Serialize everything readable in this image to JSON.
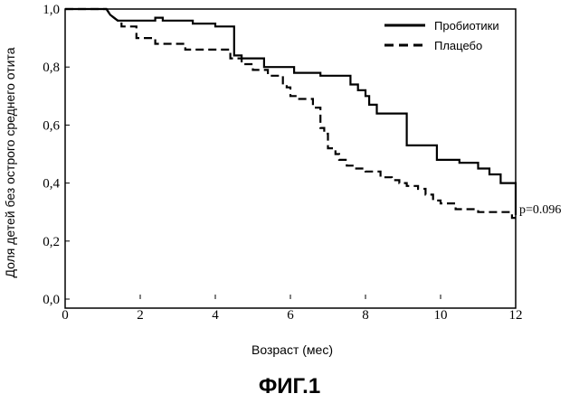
{
  "figure": {
    "caption": "ФИГ.1"
  },
  "chart_data": {
    "type": "line",
    "step": true,
    "xlabel": "Возраст (мес)",
    "ylabel": "Доля детей без острого среднего отита",
    "xlim": [
      0,
      12
    ],
    "ylim": [
      0,
      1
    ],
    "x_ticks": [
      0,
      2,
      4,
      6,
      8,
      10,
      12
    ],
    "x_tick_labels": [
      "0",
      "2",
      "4",
      "6",
      "8",
      "10",
      "12"
    ],
    "y_ticks": [
      0,
      0.2,
      0.4,
      0.6,
      0.8,
      1.0
    ],
    "y_tick_labels": [
      "0,0",
      "0,2",
      "0,4",
      "0,6",
      "0,8",
      "1,0"
    ],
    "grid": false,
    "legend_position": "top-right",
    "annotation": {
      "text": "p=0.096",
      "x": 12,
      "y": 0.3
    },
    "series": [
      {
        "name": "Пробиотики",
        "line_style": "solid",
        "color": "#000000",
        "points": [
          [
            0,
            1.0
          ],
          [
            1.1,
            1.0
          ],
          [
            1.2,
            0.98
          ],
          [
            1.3,
            0.97
          ],
          [
            1.4,
            0.96
          ],
          [
            1.5,
            0.96
          ],
          [
            2.4,
            0.96
          ],
          [
            2.4,
            0.97
          ],
          [
            2.6,
            0.97
          ],
          [
            2.6,
            0.96
          ],
          [
            3.4,
            0.96
          ],
          [
            3.4,
            0.95
          ],
          [
            4.0,
            0.95
          ],
          [
            4.0,
            0.94
          ],
          [
            4.5,
            0.94
          ],
          [
            4.5,
            0.84
          ],
          [
            4.7,
            0.84
          ],
          [
            4.7,
            0.83
          ],
          [
            5.3,
            0.83
          ],
          [
            5.3,
            0.8
          ],
          [
            6.1,
            0.8
          ],
          [
            6.1,
            0.78
          ],
          [
            6.8,
            0.78
          ],
          [
            6.8,
            0.77
          ],
          [
            7.6,
            0.77
          ],
          [
            7.6,
            0.74
          ],
          [
            7.8,
            0.74
          ],
          [
            7.8,
            0.72
          ],
          [
            8.0,
            0.72
          ],
          [
            8.0,
            0.7
          ],
          [
            8.1,
            0.7
          ],
          [
            8.1,
            0.67
          ],
          [
            8.3,
            0.67
          ],
          [
            8.3,
            0.64
          ],
          [
            9.1,
            0.64
          ],
          [
            9.1,
            0.53
          ],
          [
            9.9,
            0.53
          ],
          [
            9.9,
            0.48
          ],
          [
            10.5,
            0.48
          ],
          [
            10.5,
            0.47
          ],
          [
            11.0,
            0.47
          ],
          [
            11.0,
            0.45
          ],
          [
            11.3,
            0.45
          ],
          [
            11.3,
            0.43
          ],
          [
            11.6,
            0.43
          ],
          [
            11.6,
            0.4
          ],
          [
            12.0,
            0.4
          ],
          [
            12.0,
            0.29
          ]
        ]
      },
      {
        "name": "Плацебо",
        "line_style": "dashed",
        "color": "#000000",
        "points": [
          [
            0,
            1.0
          ],
          [
            1.1,
            1.0
          ],
          [
            1.2,
            0.98
          ],
          [
            1.4,
            0.96
          ],
          [
            1.5,
            0.96
          ],
          [
            1.5,
            0.94
          ],
          [
            1.9,
            0.94
          ],
          [
            1.9,
            0.9
          ],
          [
            2.4,
            0.9
          ],
          [
            2.4,
            0.88
          ],
          [
            3.2,
            0.88
          ],
          [
            3.2,
            0.86
          ],
          [
            4.4,
            0.86
          ],
          [
            4.4,
            0.83
          ],
          [
            4.7,
            0.83
          ],
          [
            4.7,
            0.81
          ],
          [
            5.0,
            0.81
          ],
          [
            5.0,
            0.79
          ],
          [
            5.4,
            0.79
          ],
          [
            5.4,
            0.77
          ],
          [
            5.8,
            0.77
          ],
          [
            5.8,
            0.74
          ],
          [
            5.9,
            0.74
          ],
          [
            5.9,
            0.73
          ],
          [
            6.0,
            0.73
          ],
          [
            6.0,
            0.7
          ],
          [
            6.2,
            0.7
          ],
          [
            6.2,
            0.69
          ],
          [
            6.6,
            0.69
          ],
          [
            6.6,
            0.66
          ],
          [
            6.8,
            0.66
          ],
          [
            6.8,
            0.59
          ],
          [
            6.9,
            0.59
          ],
          [
            6.9,
            0.57
          ],
          [
            7.0,
            0.57
          ],
          [
            7.0,
            0.52
          ],
          [
            7.2,
            0.52
          ],
          [
            7.2,
            0.5
          ],
          [
            7.3,
            0.5
          ],
          [
            7.3,
            0.48
          ],
          [
            7.5,
            0.48
          ],
          [
            7.5,
            0.46
          ],
          [
            7.7,
            0.46
          ],
          [
            7.7,
            0.45
          ],
          [
            8.0,
            0.45
          ],
          [
            8.0,
            0.44
          ],
          [
            8.4,
            0.44
          ],
          [
            8.4,
            0.42
          ],
          [
            8.7,
            0.42
          ],
          [
            8.7,
            0.41
          ],
          [
            8.9,
            0.41
          ],
          [
            8.9,
            0.4
          ],
          [
            9.1,
            0.4
          ],
          [
            9.1,
            0.39
          ],
          [
            9.4,
            0.39
          ],
          [
            9.4,
            0.38
          ],
          [
            9.6,
            0.38
          ],
          [
            9.6,
            0.36
          ],
          [
            9.8,
            0.36
          ],
          [
            9.8,
            0.34
          ],
          [
            10.0,
            0.34
          ],
          [
            10.0,
            0.33
          ],
          [
            10.4,
            0.33
          ],
          [
            10.4,
            0.31
          ],
          [
            11.0,
            0.31
          ],
          [
            11.0,
            0.3
          ],
          [
            11.9,
            0.3
          ],
          [
            11.9,
            0.28
          ],
          [
            12.0,
            0.28
          ]
        ]
      }
    ]
  }
}
